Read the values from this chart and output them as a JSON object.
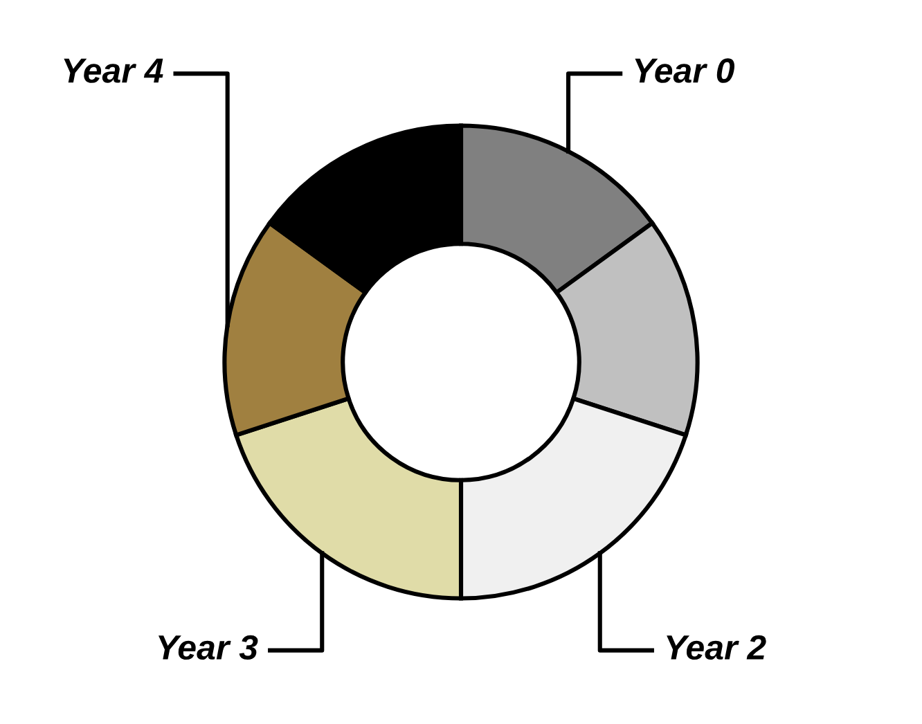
{
  "chart_data": {
    "type": "donut",
    "categories": [
      "Year 0",
      null,
      "Year 2",
      "Year 3",
      "Year 4",
      null
    ],
    "values": [
      15,
      15,
      20,
      20,
      15,
      15
    ],
    "colors": [
      "#808080",
      "#c0c0c0",
      "#f0f0f0",
      "#e0dca8",
      "#a08040",
      "#000000"
    ],
    "legend": false
  }
}
